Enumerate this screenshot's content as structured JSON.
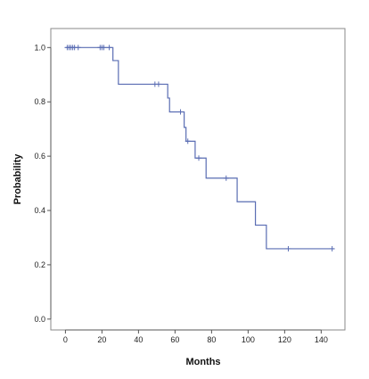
{
  "chart_data": {
    "type": "line",
    "chart_subtype": "kaplan-meier-step",
    "title": "",
    "xlabel": "Months",
    "ylabel": "Probability",
    "xlim": [
      -8,
      153
    ],
    "ylim": [
      -0.04,
      1.07
    ],
    "x_ticks": [
      0,
      20,
      40,
      60,
      80,
      100,
      120,
      140
    ],
    "y_ticks": [
      0.0,
      0.2,
      0.4,
      0.6,
      0.8,
      1.0
    ],
    "y_tick_labels": [
      "0.0",
      "0.2",
      "0.4",
      "0.6",
      "0.8",
      "1.0"
    ],
    "grid": false,
    "series": [
      {
        "color": "#5a6db3",
        "step_points": [
          [
            0,
            1.0
          ],
          [
            26,
            1.0
          ],
          [
            26,
            0.952
          ],
          [
            29,
            0.952
          ],
          [
            29,
            0.865
          ],
          [
            56,
            0.865
          ],
          [
            56,
            0.814
          ],
          [
            57,
            0.814
          ],
          [
            57,
            0.763
          ],
          [
            65,
            0.763
          ],
          [
            65,
            0.706
          ],
          [
            66,
            0.706
          ],
          [
            66,
            0.655
          ],
          [
            71,
            0.655
          ],
          [
            71,
            0.593
          ],
          [
            77,
            0.593
          ],
          [
            77,
            0.519
          ],
          [
            94,
            0.519
          ],
          [
            94,
            0.432
          ],
          [
            104,
            0.432
          ],
          [
            104,
            0.346
          ],
          [
            110,
            0.346
          ],
          [
            110,
            0.259
          ],
          [
            147,
            0.259
          ]
        ],
        "censored": [
          [
            1,
            1.0
          ],
          [
            2,
            1.0
          ],
          [
            3,
            1.0
          ],
          [
            4,
            1.0
          ],
          [
            5,
            1.0
          ],
          [
            7,
            1.0
          ],
          [
            19,
            1.0
          ],
          [
            20,
            1.0
          ],
          [
            21,
            1.0
          ],
          [
            24,
            1.0
          ],
          [
            49,
            0.865
          ],
          [
            51,
            0.865
          ],
          [
            63,
            0.763
          ],
          [
            67,
            0.655
          ],
          [
            73,
            0.593
          ],
          [
            88,
            0.519
          ],
          [
            122,
            0.259
          ],
          [
            146,
            0.259
          ]
        ]
      }
    ]
  }
}
